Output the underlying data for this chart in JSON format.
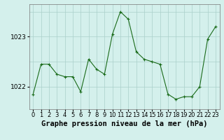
{
  "title": "Graphe pression niveau de la mer (hPa)",
  "x_values": [
    0,
    1,
    2,
    3,
    4,
    5,
    6,
    7,
    8,
    9,
    10,
    11,
    12,
    13,
    14,
    15,
    16,
    17,
    18,
    19,
    20,
    21,
    22,
    23
  ],
  "y_values": [
    1021.85,
    1022.45,
    1022.45,
    1022.25,
    1022.2,
    1022.2,
    1021.9,
    1022.55,
    1022.35,
    1022.25,
    1023.05,
    1023.5,
    1023.35,
    1022.7,
    1022.55,
    1022.5,
    1022.45,
    1021.85,
    1021.75,
    1021.8,
    1021.8,
    1022.0,
    1022.95,
    1023.2
  ],
  "line_color": "#1a6b1a",
  "marker": "+",
  "marker_size": 3,
  "marker_linewidth": 0.8,
  "line_width": 0.8,
  "bg_color": "#d4f0ec",
  "grid_color": "#aacfca",
  "yticks": [
    1022,
    1023
  ],
  "ylim": [
    1021.55,
    1023.65
  ],
  "xlim": [
    -0.5,
    23.5
  ],
  "tick_fontsize": 6.5,
  "title_fontsize": 7.5
}
